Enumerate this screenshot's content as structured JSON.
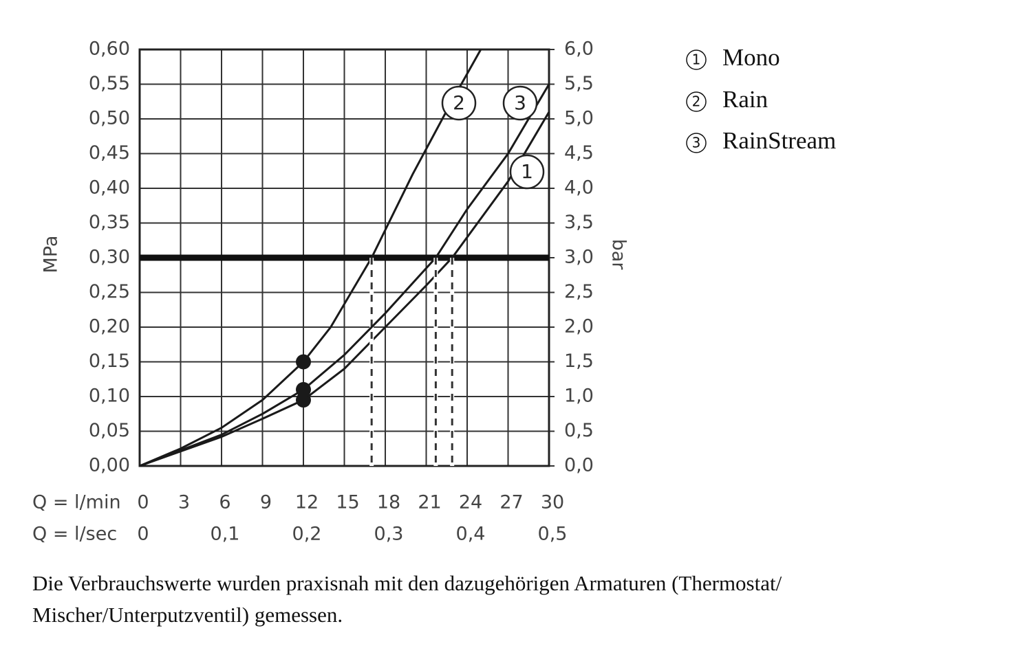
{
  "chart_data": {
    "type": "line",
    "y_label": "MPa",
    "y2_label": "bar",
    "x_label": "Q = l/min",
    "x2_label": "Q = l/sec",
    "xlim": [
      0,
      30
    ],
    "xticks": [
      0,
      3,
      6,
      9,
      12,
      15,
      18,
      21,
      24,
      27,
      30
    ],
    "x2lim": [
      0,
      0.5
    ],
    "x2ticks": [
      0,
      {
        "value": 0.1,
        "label": "0,1"
      },
      {
        "value": 0.2,
        "label": "0,2"
      },
      {
        "value": 0.3,
        "label": "0,3"
      },
      {
        "value": 0.4,
        "label": "0,4"
      },
      {
        "value": 0.5,
        "label": "0,5"
      }
    ],
    "ylim": [
      0,
      0.6
    ],
    "yticks": [
      {
        "value": 0,
        "label": "0,00"
      },
      {
        "value": 0.05,
        "label": "0,05"
      },
      {
        "value": 0.1,
        "label": "0,10"
      },
      {
        "value": 0.15,
        "label": "0,15"
      },
      {
        "value": 0.2,
        "label": "0,20"
      },
      {
        "value": 0.25,
        "label": "0,25"
      },
      {
        "value": 0.3,
        "label": "0,30"
      },
      {
        "value": 0.35,
        "label": "0,35"
      },
      {
        "value": 0.4,
        "label": "0,40"
      },
      {
        "value": 0.45,
        "label": "0,45"
      },
      {
        "value": 0.5,
        "label": "0,50"
      },
      {
        "value": 0.55,
        "label": "0,55"
      },
      {
        "value": 0.6,
        "label": "0,60"
      }
    ],
    "y2lim": [
      0,
      6
    ],
    "y2ticks": [
      {
        "value": 0,
        "label": "0,0"
      },
      {
        "value": 0.5,
        "label": "0,5"
      },
      {
        "value": 1,
        "label": "1,0"
      },
      {
        "value": 1.5,
        "label": "1,5"
      },
      {
        "value": 2,
        "label": "2,0"
      },
      {
        "value": 2.5,
        "label": "2,5"
      },
      {
        "value": 3,
        "label": "3,0"
      },
      {
        "value": 3.5,
        "label": "3,5"
      },
      {
        "value": 4,
        "label": "4,0"
      },
      {
        "value": 4.5,
        "label": "4,5"
      },
      {
        "value": 5,
        "label": "5,0"
      },
      {
        "value": 5.5,
        "label": "5,5"
      },
      {
        "value": 6,
        "label": "6,0"
      }
    ],
    "grid": true,
    "reference_line": 0.3,
    "marker_x": 12,
    "color": "#1a1a1a",
    "series": [
      {
        "name": "Mono",
        "number": "1",
        "x": [
          0,
          6,
          9,
          12,
          15,
          18,
          21,
          22.9,
          27,
          30
        ],
        "values": [
          0,
          0.042,
          0.068,
          0.095,
          0.14,
          0.2,
          0.26,
          0.3,
          0.41,
          0.51
        ]
      },
      {
        "name": "Rain",
        "number": "2",
        "x": [
          0,
          3,
          6,
          9,
          12,
          14,
          17,
          20,
          23,
          25
        ],
        "values": [
          0,
          0.025,
          0.055,
          0.095,
          0.15,
          0.2,
          0.3,
          0.42,
          0.53,
          0.6
        ]
      },
      {
        "name": "RainStream",
        "number": "3",
        "x": [
          0,
          6,
          9,
          12,
          15,
          18,
          21.7,
          24,
          27,
          30
        ],
        "values": [
          0,
          0.045,
          0.075,
          0.11,
          0.16,
          0.22,
          0.3,
          0.37,
          0.45,
          0.55
        ]
      }
    ],
    "caption": [
      "Die Verbrauchswerte wurden praxisnah mit den dazugehörigen Armaturen (Thermostat/",
      "Mischer/Unterputzventil) gemessen."
    ]
  }
}
